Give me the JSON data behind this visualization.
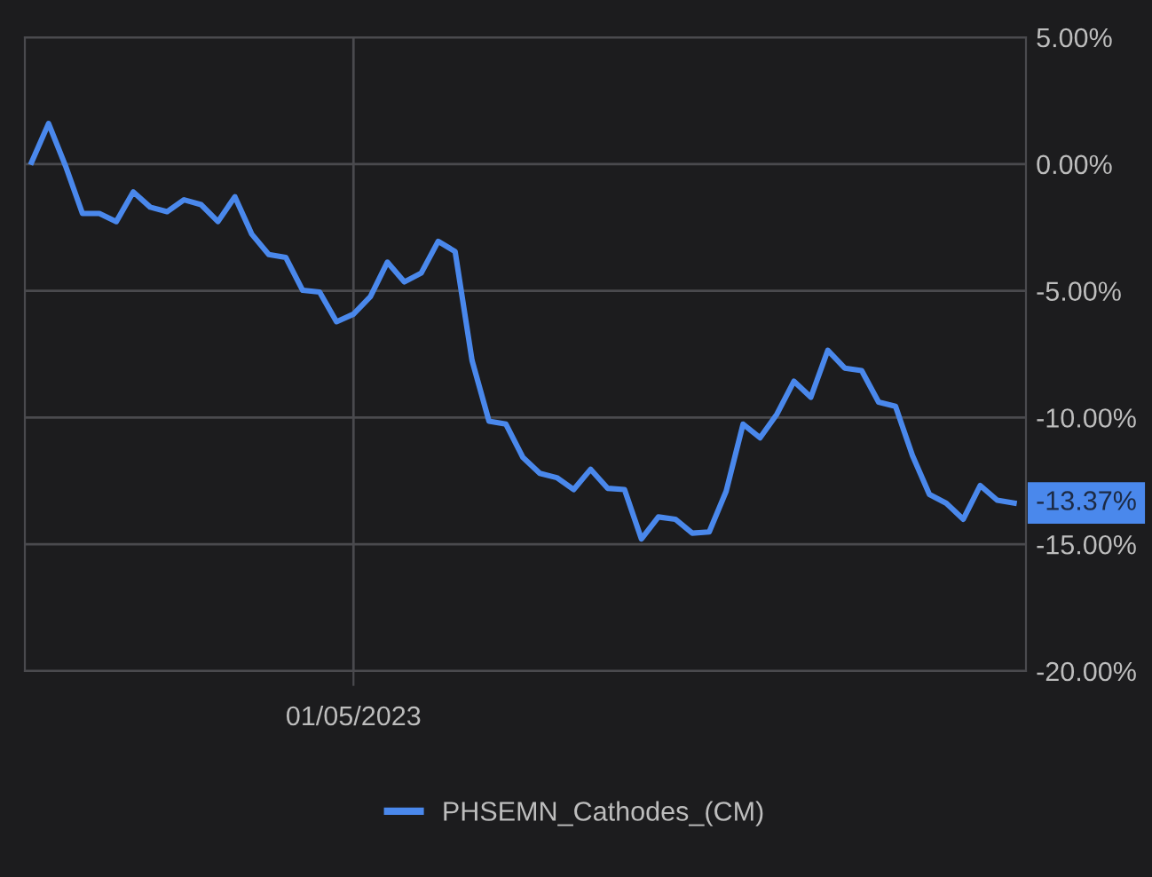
{
  "chart_data": {
    "type": "line",
    "categories": [
      null,
      null,
      null,
      null,
      null,
      null,
      null,
      null,
      null,
      null,
      null,
      null,
      null,
      null,
      null,
      null,
      null,
      null,
      null,
      "01/05/2023",
      null,
      null,
      null,
      null,
      null,
      null,
      null,
      null,
      null,
      null,
      null,
      null,
      null,
      null,
      null,
      null,
      null,
      null,
      null,
      null,
      null,
      null,
      null,
      null,
      null,
      null,
      null,
      null,
      null,
      null,
      null,
      null,
      null,
      null,
      null,
      null,
      null,
      null,
      null
    ],
    "series": [
      {
        "name": "PHSEMN_Cathodes_(CM)",
        "color": "#4a88ec",
        "values": [
          0.07,
          1.6,
          -0.07,
          -1.95,
          -1.95,
          -2.27,
          -1.1,
          -1.7,
          -1.88,
          -1.41,
          -1.6,
          -2.27,
          -1.29,
          -2.77,
          -3.57,
          -3.68,
          -4.98,
          -5.05,
          -6.22,
          -5.92,
          -5.23,
          -3.87,
          -4.65,
          -4.3,
          -3.05,
          -3.45,
          -7.75,
          -10.14,
          -10.26,
          -11.57,
          -12.2,
          -12.37,
          -12.84,
          -12.04,
          -12.79,
          -12.84,
          -14.79,
          -13.92,
          -14.01,
          -14.56,
          -14.51,
          -12.91,
          -10.26,
          -10.8,
          -9.86,
          -8.57,
          -9.2,
          -7.35,
          -8.05,
          -8.15,
          -9.39,
          -9.56,
          -11.5,
          -13.03,
          -13.38,
          -14.01,
          -12.68,
          -13.26,
          -13.37
        ]
      }
    ],
    "ylim": [
      -20,
      5
    ],
    "yticks": [
      {
        "value": 5,
        "label": "5.00%"
      },
      {
        "value": 0,
        "label": "0.00%"
      },
      {
        "value": -5,
        "label": "-5.00%"
      },
      {
        "value": -10,
        "label": "-10.00%"
      },
      {
        "value": -15,
        "label": "-15.00%"
      },
      {
        "value": -20,
        "label": "-20.00%"
      }
    ],
    "annotations": [
      "-13.37%"
    ],
    "grid": true,
    "legend": "bottom",
    "marker": "none",
    "line_style": "solid"
  }
}
